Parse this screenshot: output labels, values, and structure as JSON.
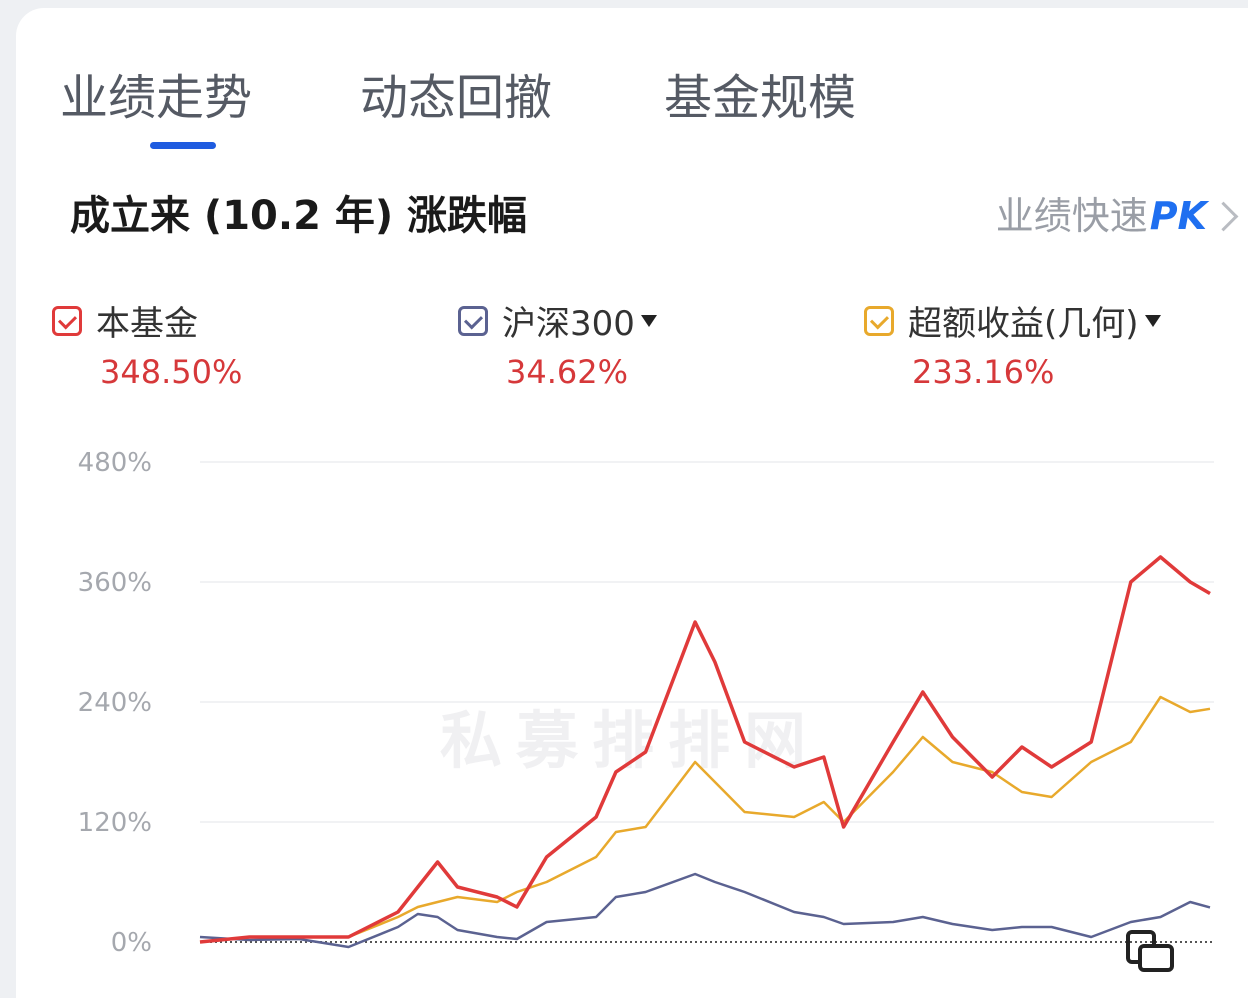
{
  "tabs": [
    {
      "label": "业绩走势",
      "active": true
    },
    {
      "label": "动态回撤",
      "active": false
    },
    {
      "label": "基金规模",
      "active": false
    }
  ],
  "subtitle": "成立来 (10.2 年) 涨跌幅",
  "quick_pk": {
    "prefix": "业绩快速",
    "strong": "PK"
  },
  "legend": [
    {
      "label": "本基金",
      "value": "348.50%",
      "color": "#e03a3a",
      "has_dropdown": false
    },
    {
      "label": "沪深300",
      "value": "34.62%",
      "color": "#5b6291",
      "has_dropdown": true
    },
    {
      "label": "超额收益(几何)",
      "value": "233.16%",
      "color": "#e8a92c",
      "has_dropdown": true
    }
  ],
  "watermark": "私募排排网",
  "chart_data": {
    "type": "line",
    "y_ticks": [
      "480%",
      "360%",
      "240%",
      "120%",
      "0%"
    ],
    "ylim": [
      0,
      480
    ],
    "x": [
      0,
      0.5,
      1,
      1.5,
      2,
      2.2,
      2.4,
      2.6,
      3,
      3.2,
      3.5,
      4,
      4.2,
      4.5,
      5,
      5.2,
      5.5,
      6,
      6.3,
      6.5,
      7,
      7.3,
      7.6,
      8,
      8.3,
      8.6,
      9,
      9.4,
      9.7,
      10,
      10.2
    ],
    "series": [
      {
        "name": "本基金",
        "color": "#e03a3a",
        "values": [
          0,
          5,
          5,
          5,
          30,
          55,
          80,
          55,
          45,
          35,
          85,
          125,
          170,
          190,
          320,
          280,
          200,
          175,
          185,
          115,
          200,
          250,
          205,
          165,
          195,
          175,
          200,
          360,
          385,
          360,
          348.5
        ]
      },
      {
        "name": "沪深300",
        "color": "#5b6291",
        "values": [
          5,
          2,
          3,
          -5,
          15,
          28,
          25,
          12,
          5,
          3,
          20,
          25,
          45,
          50,
          68,
          60,
          50,
          30,
          25,
          18,
          20,
          25,
          18,
          12,
          15,
          15,
          5,
          20,
          25,
          40,
          34.62
        ]
      },
      {
        "name": "超额收益(几何)",
        "color": "#e8a92c",
        "values": [
          0,
          5,
          5,
          5,
          25,
          35,
          40,
          45,
          40,
          50,
          60,
          85,
          110,
          115,
          180,
          160,
          130,
          125,
          140,
          120,
          170,
          205,
          180,
          170,
          150,
          145,
          180,
          200,
          245,
          230,
          233.16
        ]
      }
    ]
  }
}
